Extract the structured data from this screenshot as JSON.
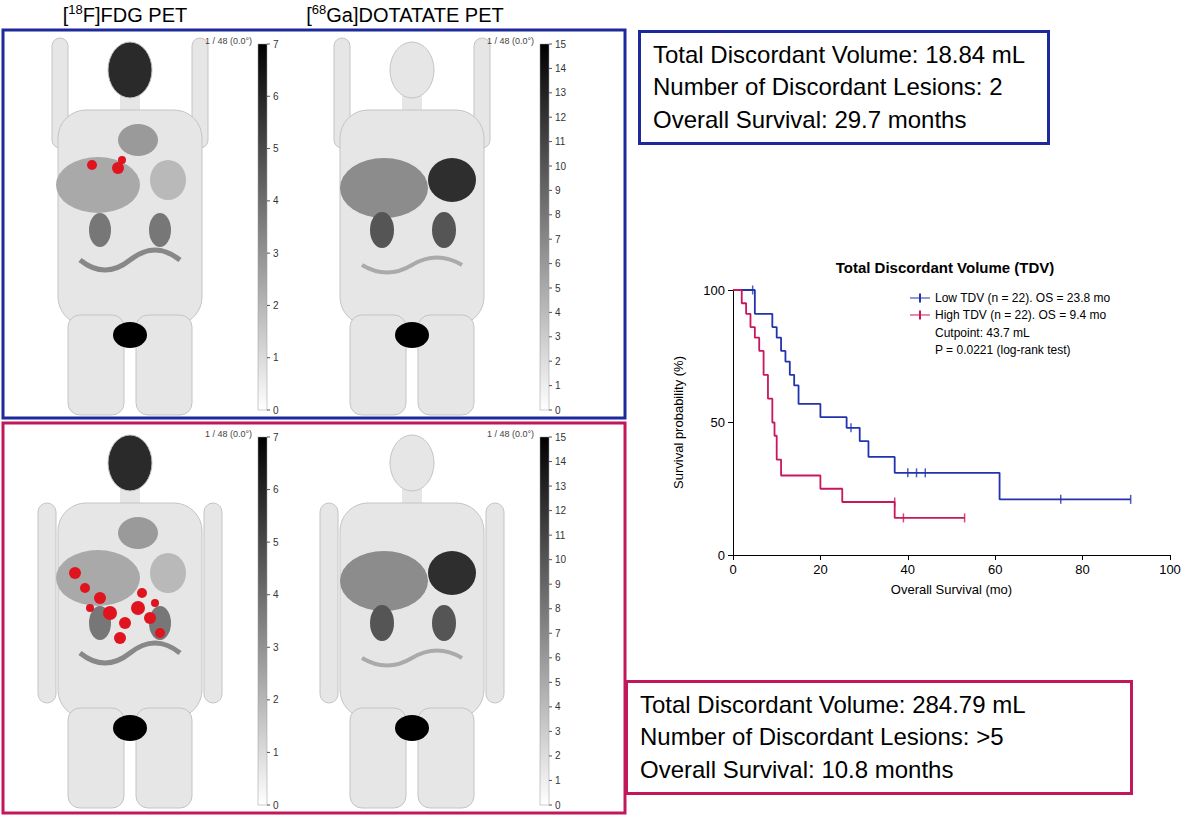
{
  "figure": {
    "columns": [
      "[18F]FDG PET",
      "[68Ga]DOTATATE PET"
    ],
    "image_label": "1 / 48 (0.0°)",
    "colorbars": [
      {
        "ticks": [
          0,
          1,
          2,
          3,
          4,
          5,
          6,
          7
        ]
      },
      {
        "ticks": [
          0,
          1,
          2,
          3,
          4,
          5,
          6,
          7,
          8,
          9,
          10,
          11,
          12,
          13,
          14,
          15
        ]
      }
    ],
    "cases": [
      {
        "color": "#1c2a9c",
        "lines": [
          "Total Discordant Volume: 18.84 mL",
          "Number of Discordant Lesions: 2",
          "Overall Survival: 29.7 months"
        ]
      },
      {
        "color": "#c2185b",
        "lines": [
          "Total Discordant Volume: 284.79 mL",
          "Number of Discordant Lesions: >5",
          "Overall Survival: 10.8 months"
        ]
      }
    ]
  },
  "chart_data": {
    "type": "line",
    "title": "Total Discordant Volume (TDV)",
    "x_label": "Overall Survival (mo)",
    "y_label": "Survival probability (%)",
    "xlim": [
      0,
      100
    ],
    "xticks": [
      0,
      20,
      40,
      60,
      80,
      100
    ],
    "ylim": [
      0,
      100
    ],
    "yticks": [
      0,
      50,
      100
    ],
    "grid": false,
    "legend": "upper right",
    "annotations": [
      "Cutpoint: 43.7 mL",
      "P = 0.0221 (log-rank test)"
    ],
    "series": [
      {
        "name": "Low TDV (n = 22). OS = 23.8 mo",
        "color": "#2233b0",
        "line_style": "step",
        "x": [
          0,
          5,
          9,
          10,
          11,
          12,
          13,
          14,
          15,
          20,
          26,
          29,
          31,
          37,
          61,
          91
        ],
        "values": [
          100,
          91,
          86,
          82,
          77,
          73,
          68,
          64,
          57,
          52,
          48,
          43,
          37,
          31,
          21,
          21
        ],
        "censored_x": [
          4.5,
          27,
          40,
          42,
          44,
          75,
          91
        ],
        "censored_y": [
          100,
          48,
          31,
          31,
          31,
          21,
          21
        ]
      },
      {
        "name": "High TDV (n = 22). OS = 9.4 mo",
        "color": "#c8175d",
        "line_style": "step",
        "x": [
          0,
          2,
          3,
          4,
          5,
          6,
          7,
          8,
          9,
          9.5,
          10,
          11,
          20,
          25,
          37,
          53
        ],
        "values": [
          100,
          95,
          91,
          86,
          82,
          77,
          68,
          59,
          50,
          45,
          36,
          30,
          25,
          20,
          14,
          14
        ],
        "censored_x": [
          37,
          39,
          53
        ],
        "censored_y": [
          20,
          14,
          14
        ]
      }
    ]
  }
}
